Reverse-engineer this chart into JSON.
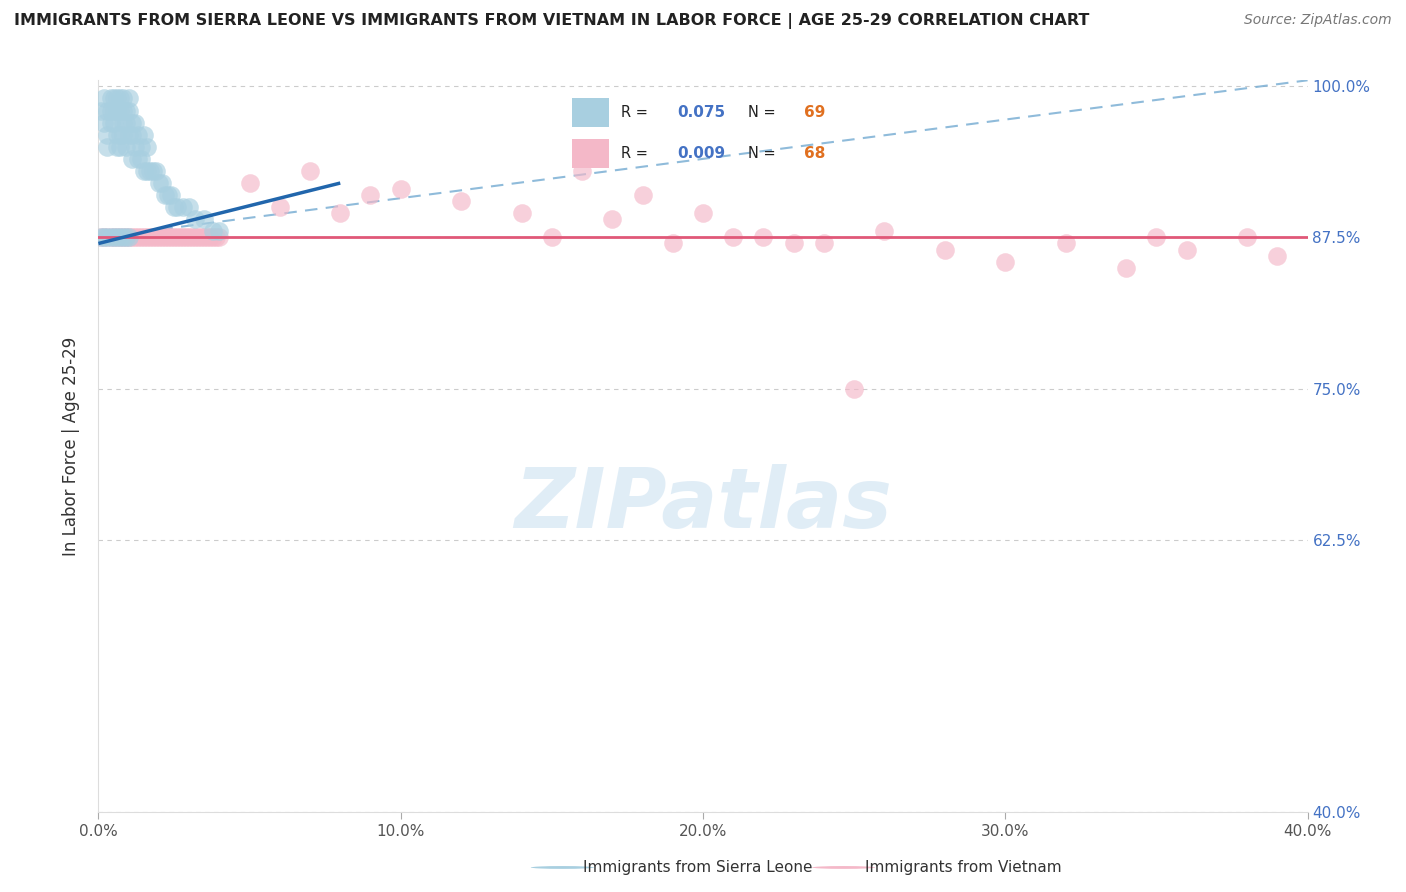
{
  "title": "IMMIGRANTS FROM SIERRA LEONE VS IMMIGRANTS FROM VIETNAM IN LABOR FORCE | AGE 25-29 CORRELATION CHART",
  "source": "Source: ZipAtlas.com",
  "ylabel": "In Labor Force | Age 25-29",
  "R1": 0.075,
  "N1": 69,
  "R2": 0.009,
  "N2": 68,
  "legend_label_1": "Immigrants from Sierra Leone",
  "legend_label_2": "Immigrants from Vietnam",
  "color_blue": "#a8cfe0",
  "color_pink": "#f4b8c8",
  "color_blue_line": "#2166ac",
  "color_pink_line": "#e05878",
  "color_dashed": "#7bafd4",
  "xlim": [
    0.0,
    0.4
  ],
  "ylim": [
    0.4,
    1.005
  ],
  "yticks": [
    0.4,
    0.625,
    0.75,
    0.875,
    1.0
  ],
  "ytick_labels": [
    "40.0%",
    "62.5%",
    "75.0%",
    "87.5%",
    "100.0%"
  ],
  "xticks": [
    0.0,
    0.1,
    0.2,
    0.3,
    0.4
  ],
  "xtick_labels": [
    "0.0%",
    "10.0%",
    "20.0%",
    "30.0%",
    "40.0%"
  ],
  "sl_x": [
    0.001,
    0.002,
    0.002,
    0.003,
    0.003,
    0.003,
    0.004,
    0.004,
    0.004,
    0.005,
    0.005,
    0.005,
    0.006,
    0.006,
    0.006,
    0.006,
    0.007,
    0.007,
    0.007,
    0.007,
    0.008,
    0.008,
    0.008,
    0.008,
    0.009,
    0.009,
    0.009,
    0.01,
    0.01,
    0.01,
    0.011,
    0.011,
    0.011,
    0.012,
    0.012,
    0.013,
    0.013,
    0.014,
    0.014,
    0.015,
    0.015,
    0.016,
    0.016,
    0.017,
    0.018,
    0.019,
    0.02,
    0.021,
    0.022,
    0.023,
    0.024,
    0.025,
    0.026,
    0.028,
    0.03,
    0.032,
    0.035,
    0.038,
    0.04,
    0.001,
    0.002,
    0.003,
    0.004,
    0.005,
    0.006,
    0.007,
    0.008,
    0.009,
    0.01
  ],
  "sl_y": [
    0.98,
    0.99,
    0.97,
    0.98,
    0.96,
    0.95,
    0.99,
    0.98,
    0.97,
    0.99,
    0.98,
    0.97,
    0.99,
    0.98,
    0.96,
    0.95,
    0.99,
    0.98,
    0.96,
    0.95,
    0.99,
    0.98,
    0.97,
    0.96,
    0.98,
    0.97,
    0.95,
    0.99,
    0.98,
    0.96,
    0.97,
    0.96,
    0.94,
    0.97,
    0.95,
    0.96,
    0.94,
    0.95,
    0.94,
    0.96,
    0.93,
    0.95,
    0.93,
    0.93,
    0.93,
    0.93,
    0.92,
    0.92,
    0.91,
    0.91,
    0.91,
    0.9,
    0.9,
    0.9,
    0.9,
    0.89,
    0.89,
    0.88,
    0.88,
    0.875,
    0.875,
    0.875,
    0.875,
    0.875,
    0.875,
    0.875,
    0.875,
    0.875,
    0.875
  ],
  "vn_x": [
    0.001,
    0.002,
    0.003,
    0.004,
    0.005,
    0.006,
    0.007,
    0.008,
    0.009,
    0.01,
    0.011,
    0.012,
    0.013,
    0.014,
    0.015,
    0.016,
    0.017,
    0.018,
    0.019,
    0.02,
    0.021,
    0.022,
    0.023,
    0.024,
    0.025,
    0.026,
    0.027,
    0.028,
    0.029,
    0.03,
    0.031,
    0.032,
    0.033,
    0.034,
    0.035,
    0.036,
    0.037,
    0.038,
    0.039,
    0.04,
    0.05,
    0.06,
    0.07,
    0.08,
    0.09,
    0.1,
    0.12,
    0.14,
    0.16,
    0.18,
    0.2,
    0.22,
    0.24,
    0.26,
    0.28,
    0.3,
    0.32,
    0.34,
    0.35,
    0.36,
    0.38,
    0.39,
    0.15,
    0.17,
    0.19,
    0.21,
    0.23,
    0.25
  ],
  "vn_y": [
    0.875,
    0.875,
    0.875,
    0.875,
    0.875,
    0.875,
    0.875,
    0.875,
    0.875,
    0.875,
    0.875,
    0.875,
    0.875,
    0.875,
    0.875,
    0.875,
    0.875,
    0.875,
    0.875,
    0.875,
    0.875,
    0.875,
    0.875,
    0.875,
    0.875,
    0.875,
    0.875,
    0.875,
    0.875,
    0.875,
    0.875,
    0.875,
    0.875,
    0.875,
    0.875,
    0.875,
    0.875,
    0.875,
    0.875,
    0.875,
    0.92,
    0.9,
    0.93,
    0.895,
    0.91,
    0.915,
    0.905,
    0.895,
    0.93,
    0.91,
    0.895,
    0.875,
    0.87,
    0.88,
    0.865,
    0.855,
    0.87,
    0.85,
    0.875,
    0.865,
    0.875,
    0.86,
    0.875,
    0.89,
    0.87,
    0.875,
    0.87,
    0.75
  ],
  "sl_line_x": [
    0.0,
    0.08
  ],
  "sl_line_y": [
    0.87,
    0.92
  ],
  "vn_line_y": 0.875,
  "dash_line_x": [
    0.0,
    0.4
  ],
  "dash_line_y": [
    0.875,
    1.005
  ]
}
